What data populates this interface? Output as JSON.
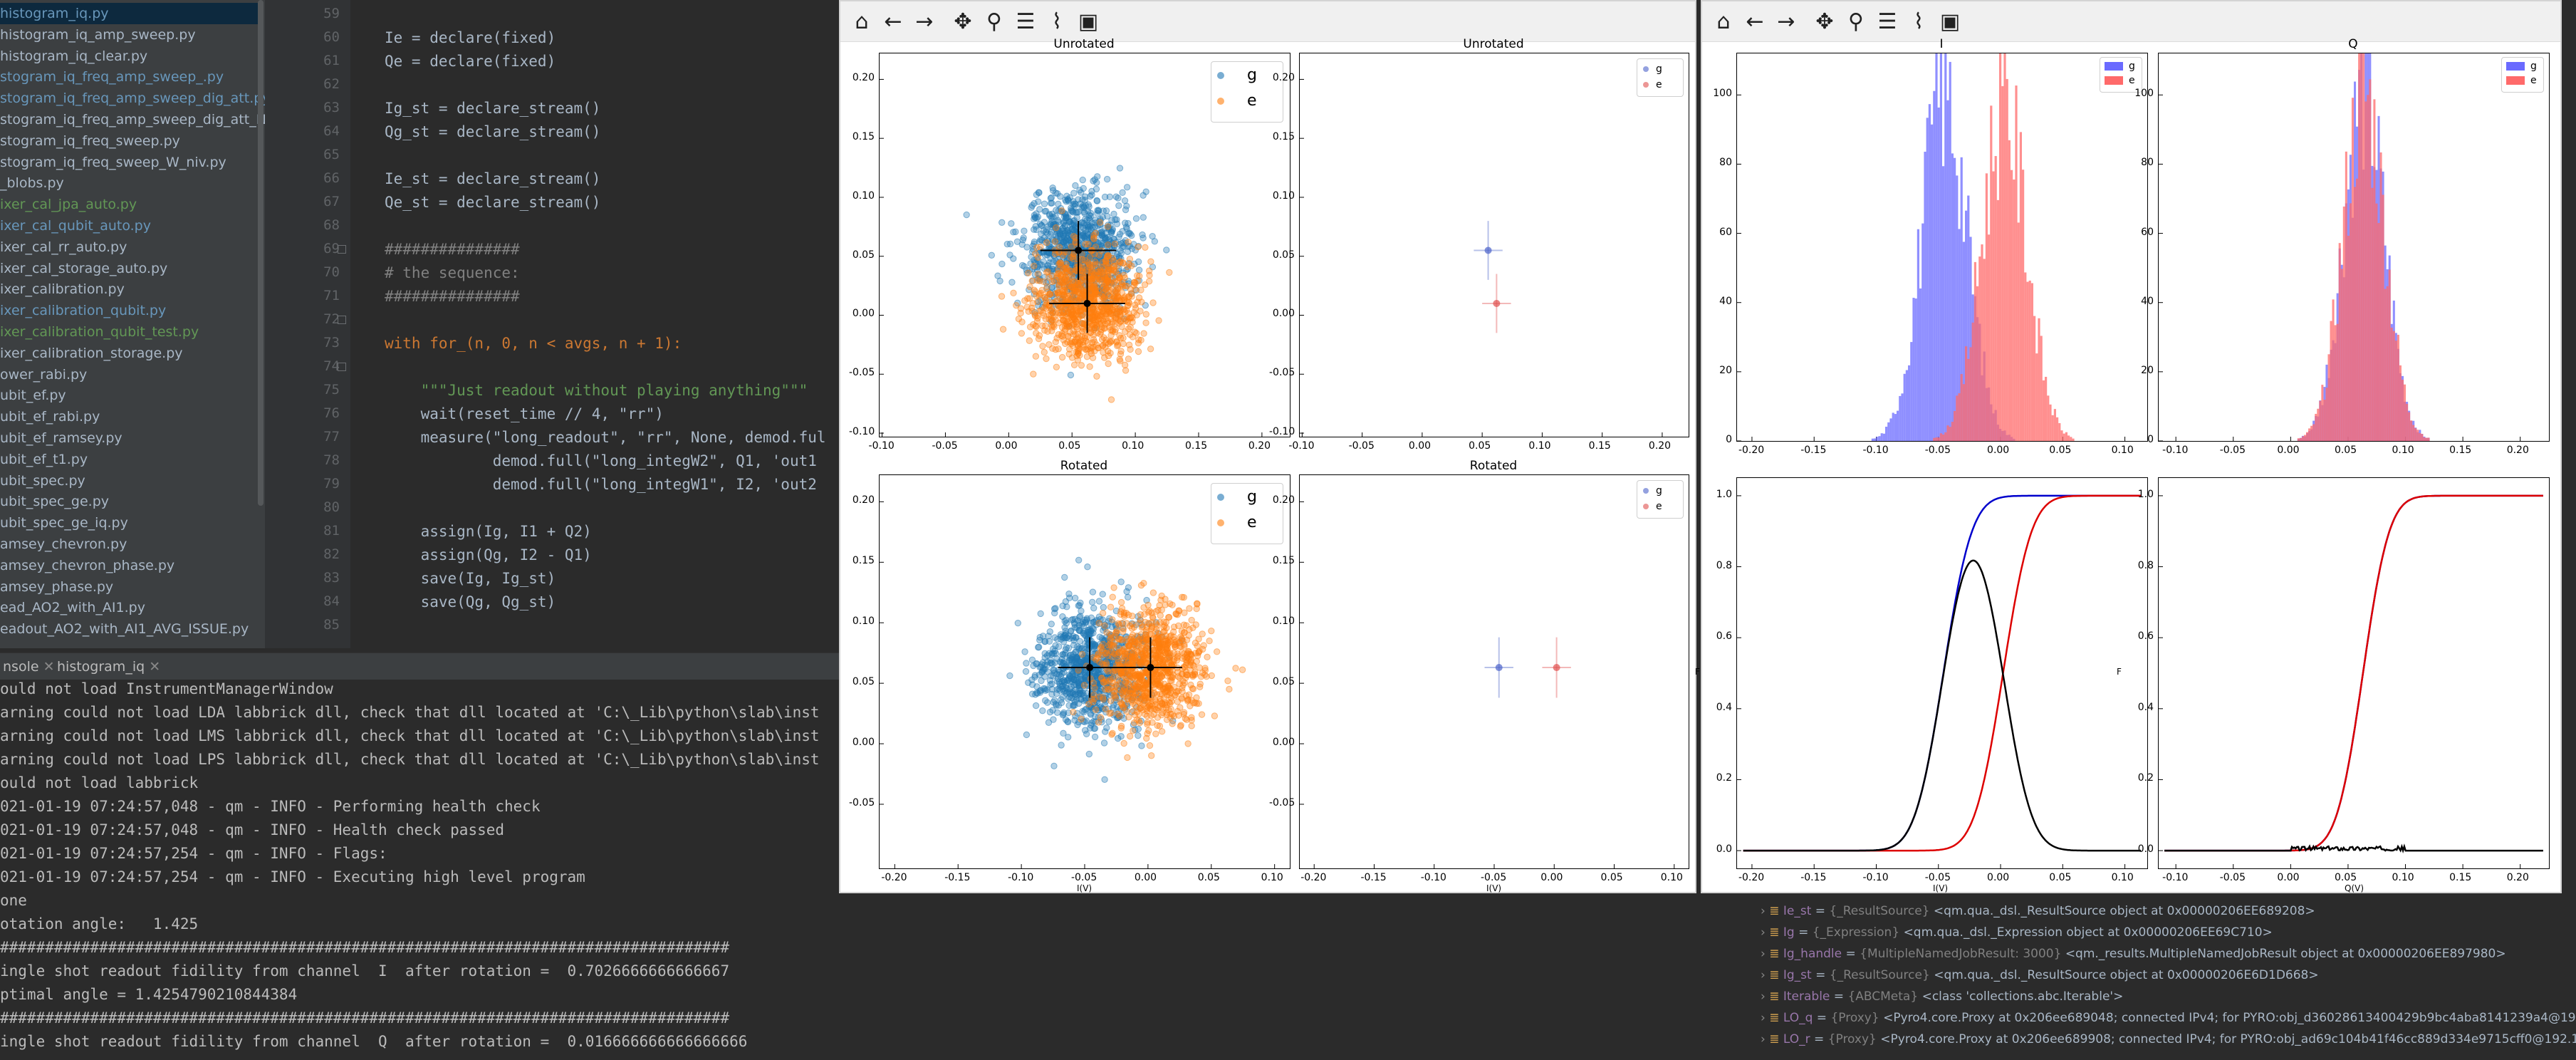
{
  "project_tree": {
    "items": [
      {
        "label": "histogram_iq.py",
        "color": "#6897bb",
        "selected": true
      },
      {
        "label": "histogram_iq_amp_sweep.py",
        "color": "#a9b7c6"
      },
      {
        "label": "histogram_iq_clear.py",
        "color": "#a9b7c6"
      },
      {
        "label": "stogram_iq_freq_amp_sweep_.py",
        "color": "#6897bb"
      },
      {
        "label": "stogram_iq_freq_amp_sweep_dig_att.py",
        "color": "#6897bb"
      },
      {
        "label": "stogram_iq_freq_amp_sweep_dig_att_Niv.py",
        "color": "#a9b7c6"
      },
      {
        "label": "stogram_iq_freq_sweep.py",
        "color": "#a9b7c6"
      },
      {
        "label": "stogram_iq_freq_sweep_W_niv.py",
        "color": "#a9b7c6"
      },
      {
        "label": "_blobs.py",
        "color": "#a9b7c6"
      },
      {
        "label": "ixer_cal_jpa_auto.py",
        "color": "#629755"
      },
      {
        "label": "ixer_cal_qubit_auto.py",
        "color": "#6897bb"
      },
      {
        "label": "ixer_cal_rr_auto.py",
        "color": "#a9b7c6"
      },
      {
        "label": "ixer_cal_storage_auto.py",
        "color": "#a9b7c6"
      },
      {
        "label": "ixer_calibration.py",
        "color": "#a9b7c6"
      },
      {
        "label": "ixer_calibration_qubit.py",
        "color": "#6897bb"
      },
      {
        "label": "ixer_calibration_qubit_test.py",
        "color": "#629755"
      },
      {
        "label": "ixer_calibration_storage.py",
        "color": "#a9b7c6"
      },
      {
        "label": "ower_rabi.py",
        "color": "#a9b7c6"
      },
      {
        "label": "ubit_ef.py",
        "color": "#a9b7c6"
      },
      {
        "label": "ubit_ef_rabi.py",
        "color": "#a9b7c6"
      },
      {
        "label": "ubit_ef_ramsey.py",
        "color": "#a9b7c6"
      },
      {
        "label": "ubit_ef_t1.py",
        "color": "#a9b7c6"
      },
      {
        "label": "ubit_spec.py",
        "color": "#a9b7c6"
      },
      {
        "label": "ubit_spec_ge.py",
        "color": "#a9b7c6"
      },
      {
        "label": "ubit_spec_ge_iq.py",
        "color": "#a9b7c6"
      },
      {
        "label": "amsey_chevron.py",
        "color": "#a9b7c6"
      },
      {
        "label": "amsey_chevron_phase.py",
        "color": "#a9b7c6"
      },
      {
        "label": "amsey_phase.py",
        "color": "#a9b7c6"
      },
      {
        "label": "ead_AO2_with_AI1.py",
        "color": "#a9b7c6"
      },
      {
        "label": "eadout_AO2_with_AI1_AVG_ISSUE.py",
        "color": "#a9b7c6"
      }
    ]
  },
  "editor": {
    "line_numbers": [
      "59",
      "60",
      "61",
      "62",
      "63",
      "64",
      "65",
      "66",
      "67",
      "68",
      "69",
      "70",
      "71",
      "72",
      "73",
      "74",
      "75",
      "76",
      "77",
      "78",
      "79",
      "80",
      "81",
      "82",
      "83",
      "84",
      "85"
    ],
    "lines": [
      "",
      "Ie = declare(fixed)",
      "Qe = declare(fixed)",
      "",
      "Ig_st = declare_stream()",
      "Qg_st = declare_stream()",
      "",
      "Ie_st = declare_stream()",
      "Qe_st = declare_stream()",
      "",
      "###############",
      "# the sequence:",
      "###############",
      "",
      "with for_(n, 0, n < avgs, n + 1):",
      "",
      "    \"\"\"Just readout without playing anything\"\"\"",
      "    wait(reset_time // 4, \"rr\")",
      "    measure(\"long_readout\", \"rr\", None, demod.ful",
      "            demod.full(\"long_integW2\", Q1, 'out1",
      "            demod.full(\"long_integW1\", I2, 'out2",
      "",
      "    assign(Ig, I1 + Q2)",
      "    assign(Qg, I2 - Q1)",
      "    save(Ig, Ig_st)",
      "    save(Qg, Qg_st)",
      ""
    ]
  },
  "console": {
    "tabs": [
      "nsole",
      "histogram_iq"
    ],
    "lines": [
      "ould not load InstrumentManagerWindow",
      "arning could not load LDA labbrick dll, check that dll located at 'C:\\_Lib\\python\\slab\\inst",
      "arning could not load LMS labbrick dll, check that dll located at 'C:\\_Lib\\python\\slab\\inst",
      "arning could not load LPS labbrick dll, check that dll located at 'C:\\_Lib\\python\\slab\\inst",
      "ould not load labbrick",
      "021-01-19 07:24:57,048 - qm - INFO - Performing health check",
      "021-01-19 07:24:57,048 - qm - INFO - Health check passed",
      "021-01-19 07:24:57,254 - qm - INFO - Flags:",
      "021-01-19 07:24:57,254 - qm - INFO - Executing high level program",
      "one",
      "otation angle:   1.425",
      "#################################################################################",
      "ingle shot readout fidility from channel  I  after rotation =  0.7026666666666667",
      "ptimal angle = 1.4254790210844384",
      "#################################################################################",
      "ingle shot readout fidility from channel  Q  after rotation =  0.016666666666666666"
    ]
  },
  "variables": {
    "items": [
      {
        "name": "Ie_st",
        "type": "{_ResultSource}",
        "value": "<qm.qua._dsl._ResultSource object at 0x00000206EE689208>"
      },
      {
        "name": "Ig",
        "type": "{_Expression}",
        "value": "<qm.qua._dsl._Expression object at 0x00000206EE69C710>"
      },
      {
        "name": "Ig_handle",
        "type": "{MultipleNamedJobResult: 3000}",
        "value": "<qm._results.MultipleNamedJobResult object at 0x00000206EE897980>"
      },
      {
        "name": "Ig_st",
        "type": "{_ResultSource}",
        "value": "<qm.qua._dsl._ResultSource object at 0x00000206E6D1D668>"
      },
      {
        "name": "Iterable",
        "type": "{ABCMeta}",
        "value": "<class 'collections.abc.Iterable'>"
      },
      {
        "name": "LO_q",
        "type": "{Proxy}",
        "value": "<Pyro4.core.Proxy at 0x206ee689048; connected IPv4; for PYRO:obj_d36028613400429b9bc4aba8141239a4@192.168.14"
      },
      {
        "name": "LO_r",
        "type": "{Proxy}",
        "value": "<Pyro4.core.Proxy at 0x206ee689908; connected IPv4; for PYRO:obj_ad69c104b41f46cc889d334e9715cff0@192.168.14.33"
      }
    ]
  },
  "figure1": {
    "toolbar_icons": [
      "home-icon",
      "back-arrow-icon",
      "forward-arrow-icon",
      "pan-icon",
      "zoom-icon",
      "configure-subplots-icon",
      "edit-axis-icon",
      "save-icon"
    ],
    "colors": {
      "g": "#1f77b4",
      "e": "#ff7f0e",
      "g_dot": "#4c63c9",
      "e_dot": "#e0504f"
    },
    "titles": [
      "Unrotated",
      "Unrotated",
      "Rotated",
      "Rotated"
    ],
    "xlabel_bottom": "I(V)",
    "legend_labels": [
      "g",
      "e"
    ],
    "x_ticks": [
      "-0.10",
      "-0.05",
      "0.00",
      "0.05",
      "0.10",
      "0.15",
      "0.20"
    ],
    "x_ticks_rot": [
      "-0.20",
      "-0.15",
      "-0.10",
      "-0.05",
      "0.00",
      "0.05",
      "0.10"
    ],
    "y_ticks": [
      "0.20",
      "0.15",
      "0.10",
      "0.05",
      "0.00",
      "-0.05",
      "-0.10"
    ],
    "y_ticks_rot": [
      "0.20",
      "0.15",
      "0.10",
      "0.05",
      "0.00",
      "-0.05"
    ]
  },
  "figure2": {
    "toolbar_icons": [
      "home-icon",
      "back-arrow-icon",
      "forward-arrow-icon",
      "pan-icon",
      "zoom-icon",
      "configure-subplots-icon",
      "edit-axis-icon",
      "save-icon"
    ],
    "titles": [
      "I",
      "Q"
    ],
    "legend_labels": [
      "g",
      "e"
    ],
    "colors": {
      "g": "#6a6aff",
      "e": "#ff6a6a",
      "overlap": "#b4346e",
      "cdf_g": "#0000cc",
      "cdf_e": "#dd0000",
      "diff": "#000000"
    },
    "hist_y_ticks_I": [
      "100",
      "80",
      "60",
      "40",
      "20",
      "0"
    ],
    "hist_y_ticks_Q": [
      "100",
      "80",
      "60",
      "40",
      "20",
      "0"
    ],
    "x_ticks": [
      "-0.20",
      "-0.15",
      "-0.10",
      "-0.05",
      "0.00",
      "0.05",
      "0.10"
    ],
    "x_ticks_Q": [
      "-0.10",
      "-0.05",
      "0.00",
      "0.05",
      "0.10",
      "0.15",
      "0.20"
    ],
    "cdf_y_ticks": [
      "1.0",
      "0.8",
      "0.6",
      "0.4",
      "0.2",
      "0.0"
    ],
    "xlabel_I": "I(V)",
    "xlabel_Q": "Q(V)",
    "ylabel_cdf": "F"
  },
  "chart_data": [
    {
      "type": "scatter",
      "title": "Unrotated",
      "legend": [
        "g",
        "e"
      ],
      "x_range": [
        -0.1,
        0.22
      ],
      "y_range": [
        -0.1,
        0.22
      ],
      "series": [
        {
          "name": "g",
          "center": [
            0.055,
            0.055
          ],
          "errorbar": [
            0.03,
            0.025
          ]
        },
        {
          "name": "e",
          "center": [
            0.062,
            0.01
          ],
          "errorbar": [
            0.03,
            0.025
          ]
        }
      ]
    },
    {
      "type": "scatter",
      "title": "Unrotated",
      "legend": [
        "g",
        "e"
      ],
      "x_range": [
        -0.1,
        0.22
      ],
      "y_range": [
        -0.1,
        0.22
      ],
      "series": [
        {
          "name": "g",
          "points": [
            [
              0.055,
              0.055
            ]
          ]
        },
        {
          "name": "e",
          "points": [
            [
              0.062,
              0.01
            ]
          ]
        }
      ]
    },
    {
      "type": "scatter",
      "title": "Rotated",
      "legend": [
        "g",
        "e"
      ],
      "x_range": [
        -0.21,
        0.11
      ],
      "y_range": [
        -0.1,
        0.22
      ],
      "series": [
        {
          "name": "g",
          "center": [
            -0.046,
            0.063
          ],
          "errorbar": [
            0.025,
            0.025
          ]
        },
        {
          "name": "e",
          "center": [
            0.002,
            0.063
          ],
          "errorbar": [
            0.025,
            0.025
          ]
        }
      ]
    },
    {
      "type": "scatter",
      "title": "Rotated",
      "legend": [
        "g",
        "e"
      ],
      "x_range": [
        -0.21,
        0.11
      ],
      "y_range": [
        -0.1,
        0.22
      ],
      "series": [
        {
          "name": "g",
          "points": [
            [
              -0.046,
              0.063
            ]
          ]
        },
        {
          "name": "e",
          "points": [
            [
              0.002,
              0.063
            ]
          ]
        }
      ]
    },
    {
      "type": "bar",
      "title": "I",
      "legend": [
        "g",
        "e"
      ],
      "x_range": [
        -0.21,
        0.12
      ],
      "y_range": [
        0,
        112
      ],
      "series": [
        {
          "name": "g",
          "mean": -0.046,
          "sigma": 0.018,
          "peak": 105
        },
        {
          "name": "e",
          "mean": 0.002,
          "sigma": 0.018,
          "peak": 100
        }
      ]
    },
    {
      "type": "bar",
      "title": "Q",
      "legend": [
        "g",
        "e"
      ],
      "x_range": [
        -0.11,
        0.22
      ],
      "y_range": [
        0,
        112
      ],
      "series": [
        {
          "name": "g",
          "mean": 0.063,
          "sigma": 0.018,
          "peak": 103
        },
        {
          "name": "e",
          "mean": 0.063,
          "sigma": 0.018,
          "peak": 103
        }
      ]
    },
    {
      "type": "line",
      "title": "",
      "xlabel": "I(V)",
      "ylabel": "F",
      "x_range": [
        -0.21,
        0.12
      ],
      "y_range": [
        -0.05,
        1.05
      ],
      "series": [
        {
          "name": "g",
          "mean": -0.046,
          "sigma": 0.018
        },
        {
          "name": "e",
          "mean": 0.002,
          "sigma": 0.018
        },
        {
          "name": "fidelity",
          "peak": 0.7,
          "at": -0.025
        }
      ]
    },
    {
      "type": "line",
      "title": "",
      "xlabel": "Q(V)",
      "ylabel": "F",
      "x_range": [
        -0.11,
        0.22
      ],
      "y_range": [
        -0.05,
        1.05
      ],
      "series": [
        {
          "name": "g",
          "mean": 0.063,
          "sigma": 0.018
        },
        {
          "name": "e",
          "mean": 0.063,
          "sigma": 0.018
        },
        {
          "name": "fidelity",
          "peak": 0.02,
          "at": 0.05
        }
      ]
    }
  ]
}
